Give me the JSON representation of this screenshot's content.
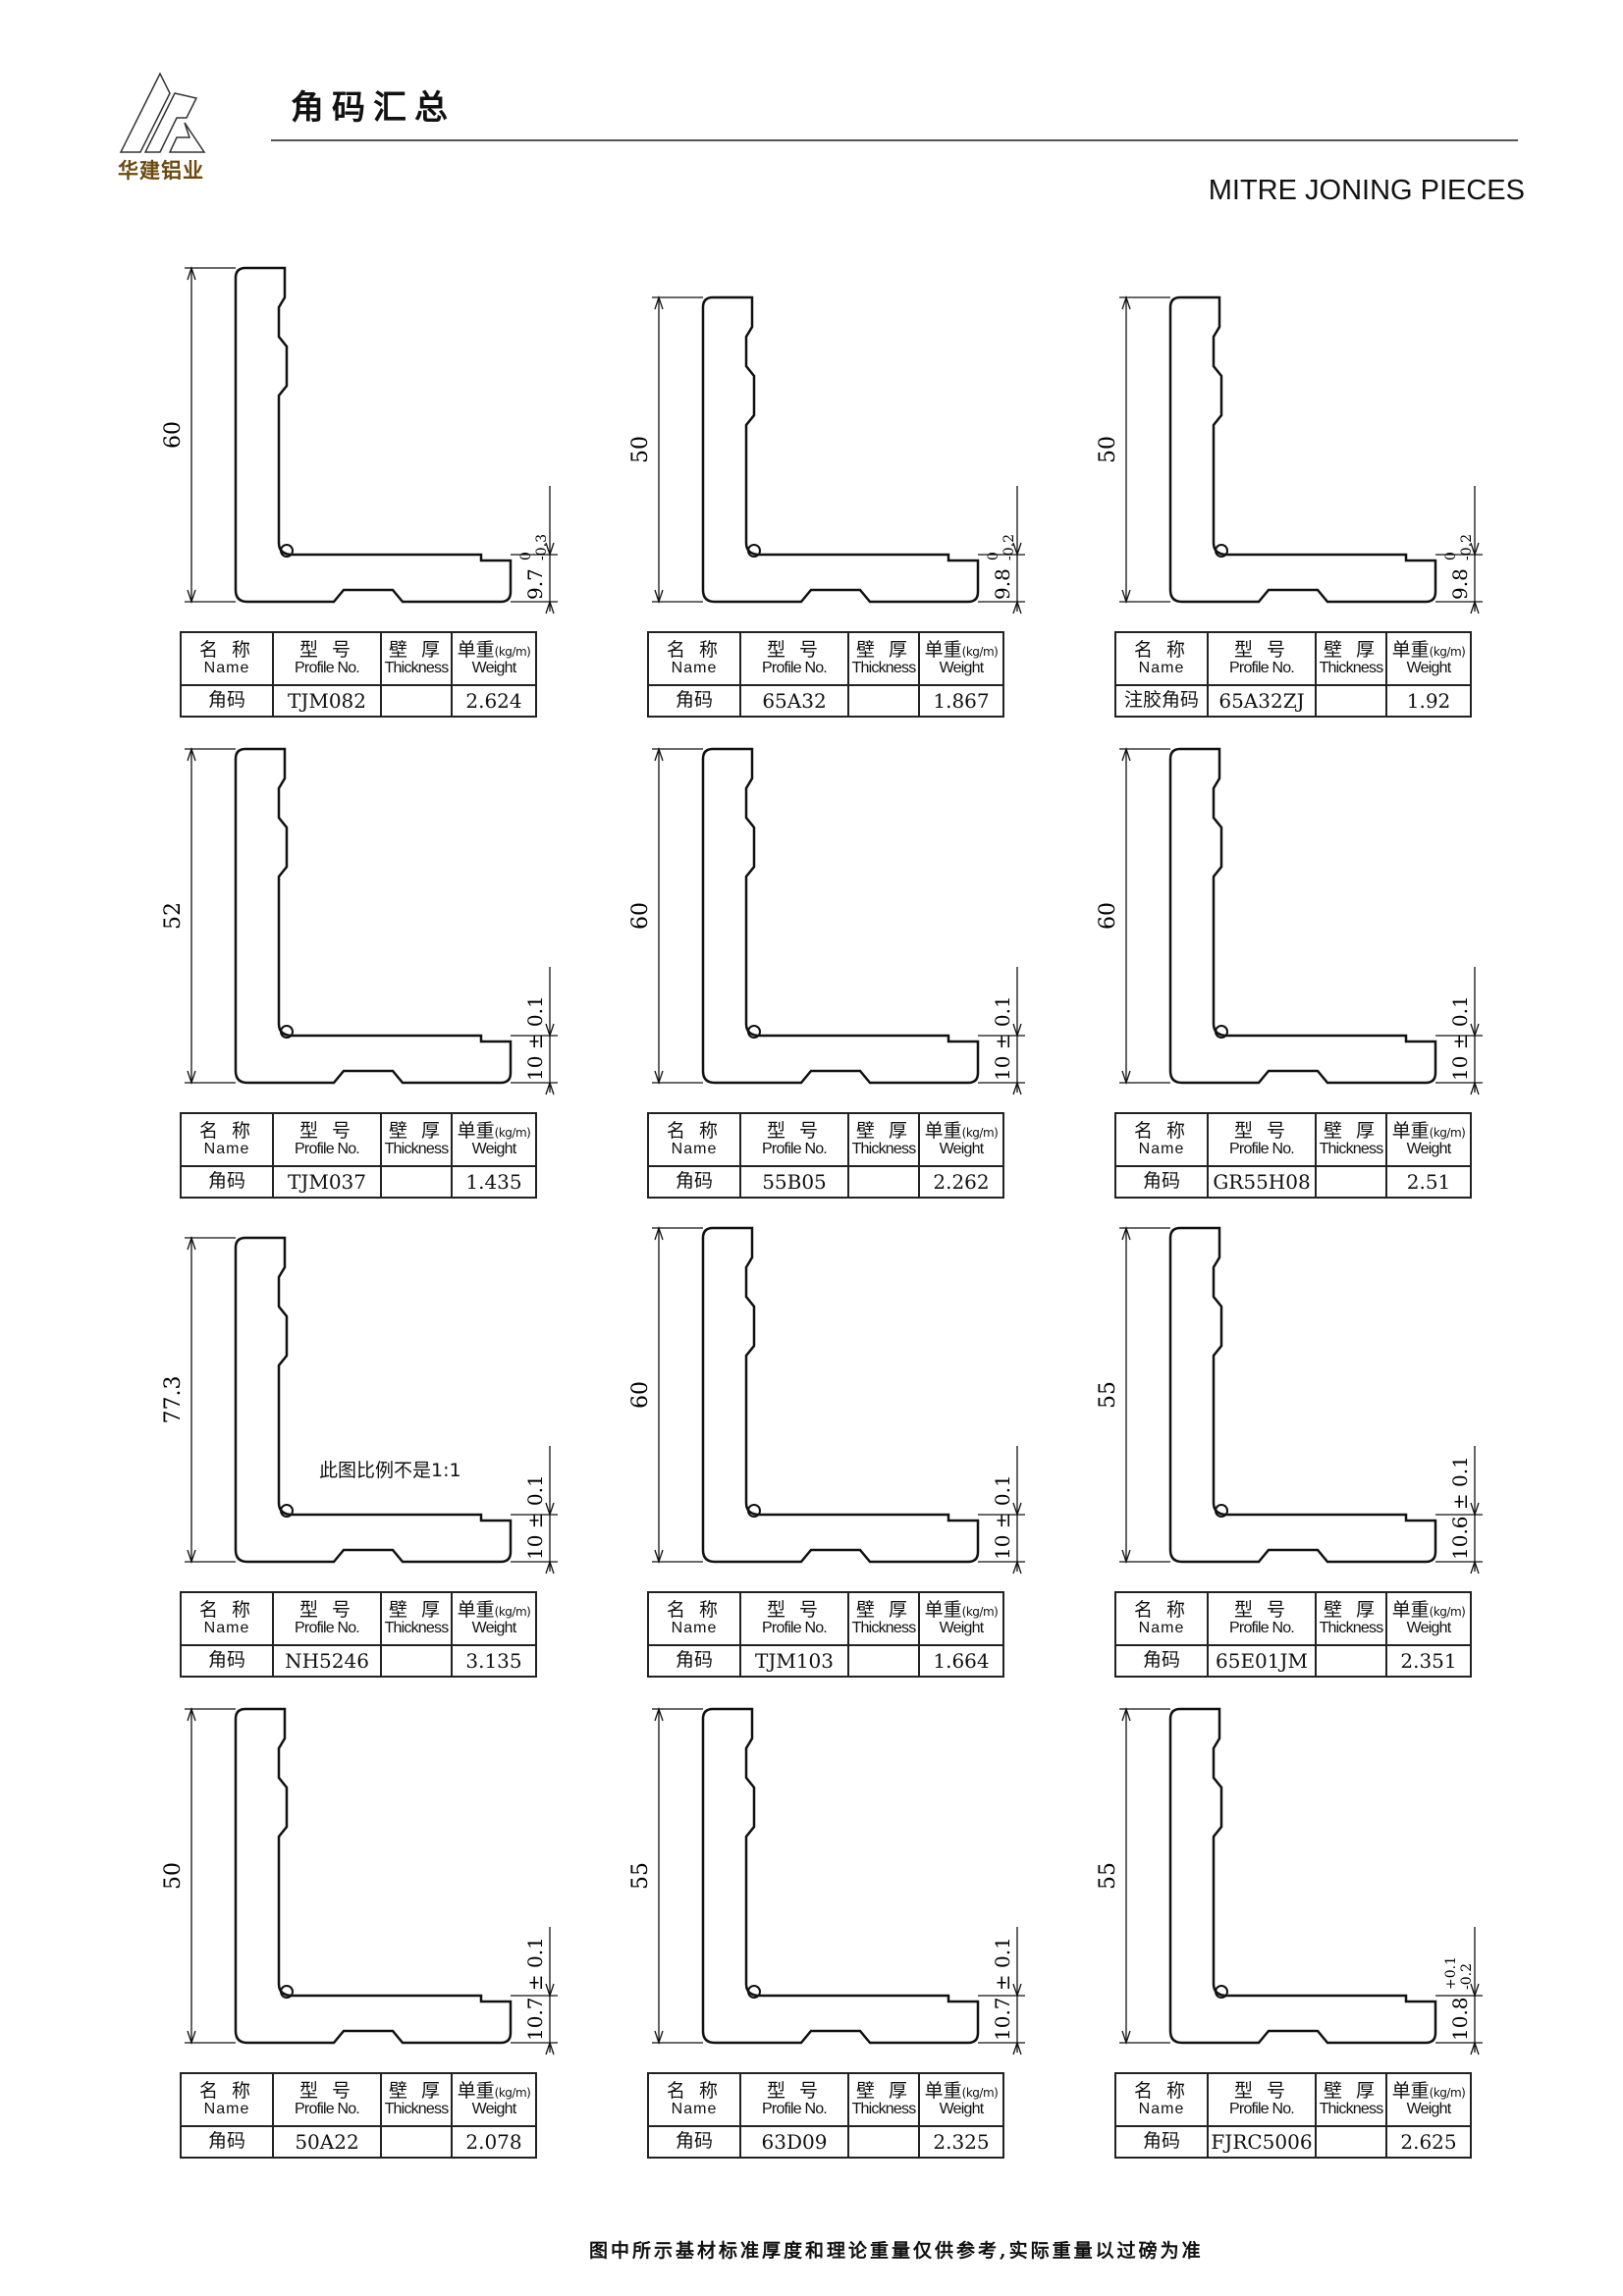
{
  "header": {
    "logo_text": "华建铝业",
    "title": "角码汇总",
    "subtitle": "MITRE JONING PIECES"
  },
  "table_headers": {
    "name_zh": "名 称",
    "name_en": "Name",
    "profile_zh": "型 号",
    "profile_en": "Profile No.",
    "thickness_zh": "壁 厚",
    "thickness_en": "Thickness",
    "weight_zh": "单重",
    "weight_unit": "(kg/m)",
    "weight_en": "Weight"
  },
  "items": [
    {
      "name": "角码",
      "profile": "TJM082",
      "thickness": "",
      "weight": "2.624",
      "height_dim": "60",
      "leg_dim": "9.7",
      "tol_upper": "0",
      "tol_lower": "-0.3"
    },
    {
      "name": "角码",
      "profile": "65A32",
      "thickness": "",
      "weight": "1.867",
      "height_dim": "50",
      "leg_dim": "9.8",
      "tol_upper": "0",
      "tol_lower": "-0.2"
    },
    {
      "name": "注胶角码",
      "profile": "65A32ZJ",
      "thickness": "",
      "weight": "1.92",
      "height_dim": "50",
      "leg_dim": "9.8",
      "tol_upper": "0",
      "tol_lower": "-0.2"
    },
    {
      "name": "角码",
      "profile": "TJM037",
      "thickness": "",
      "weight": "1.435",
      "height_dim": "52",
      "leg_dim": "10",
      "tol": "± 0.1"
    },
    {
      "name": "角码",
      "profile": "55B05",
      "thickness": "",
      "weight": "2.262",
      "height_dim": "60",
      "leg_dim": "10",
      "tol": "± 0.1"
    },
    {
      "name": "角码",
      "profile": "GR55H08",
      "thickness": "",
      "weight": "2.51",
      "height_dim": "60",
      "leg_dim": "10",
      "tol": "± 0.1"
    },
    {
      "name": "角码",
      "profile": "NH5246",
      "thickness": "",
      "weight": "3.135",
      "height_dim": "77.3",
      "leg_dim": "10",
      "tol": "± 0.1",
      "note": "此图比例不是1:1"
    },
    {
      "name": "角码",
      "profile": "TJM103",
      "thickness": "",
      "weight": "1.664",
      "height_dim": "60",
      "leg_dim": "10",
      "tol": "± 0.1"
    },
    {
      "name": "角码",
      "profile": "65E01JM",
      "thickness": "",
      "weight": "2.351",
      "height_dim": "55",
      "leg_dim": "10.6",
      "tol": "± 0.1"
    },
    {
      "name": "角码",
      "profile": "50A22",
      "thickness": "",
      "weight": "2.078",
      "height_dim": "50",
      "leg_dim": "10.7",
      "tol": "± 0.1"
    },
    {
      "name": "角码",
      "profile": "63D09",
      "thickness": "",
      "weight": "2.325",
      "height_dim": "55",
      "leg_dim": "10.7",
      "tol": "± 0.1"
    },
    {
      "name": "角码",
      "profile": "FJRC5006",
      "thickness": "",
      "weight": "2.625",
      "height_dim": "55",
      "leg_dim": "10.8",
      "tol_upper": "+0.1",
      "tol_lower": "-0.2"
    }
  ],
  "footer": "图中所示基材标准厚度和理论重量仅供参考,实际重量以过磅为准"
}
